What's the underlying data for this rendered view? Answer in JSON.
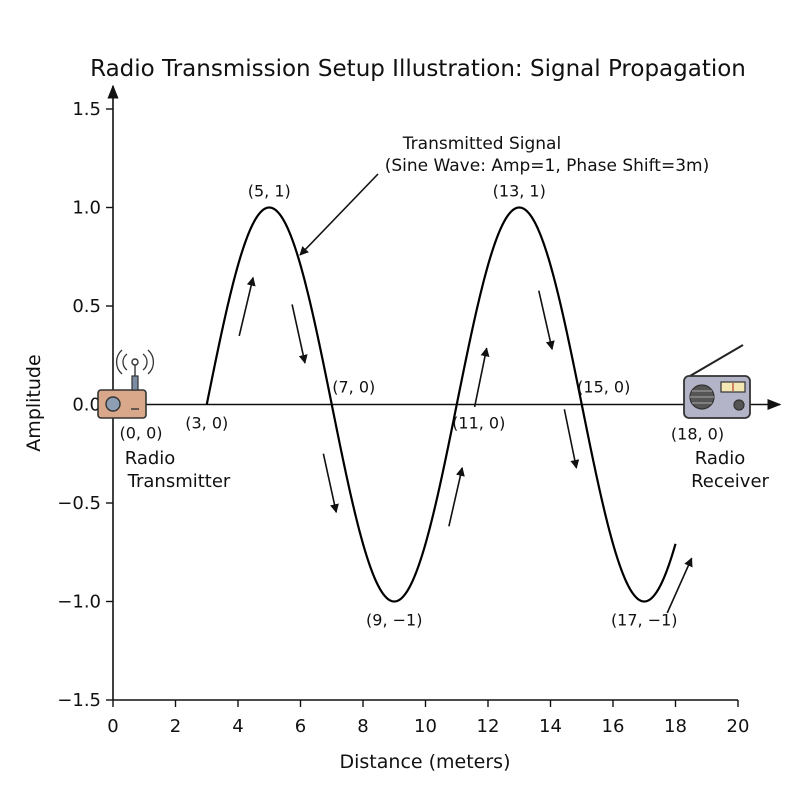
{
  "chart_data": {
    "type": "line",
    "title": "Radio Transmission Setup Illustration: Signal Propagation",
    "xlabel": "Distance (meters)",
    "ylabel": "Amplitude",
    "xlim": [
      0,
      20
    ],
    "ylim": [
      -1.5,
      1.5
    ],
    "x_ticks": [
      0,
      2,
      4,
      6,
      8,
      10,
      12,
      14,
      16,
      18,
      20
    ],
    "y_ticks": [
      -1.5,
      -1.0,
      -0.5,
      0.0,
      0.5,
      1.0,
      1.5
    ],
    "x_tick_labels": [
      "0",
      "2",
      "4",
      "6",
      "8",
      "10",
      "12",
      "14",
      "16",
      "18",
      "20"
    ],
    "y_tick_labels": [
      "−1.5",
      "−1.0",
      "−0.5",
      "0.0",
      "0.5",
      "1.0",
      "1.5"
    ],
    "grid": false,
    "series": [
      {
        "kind": "sine",
        "amplitude": 1,
        "x_start": 3,
        "x_end": 18,
        "x": [
          3,
          5,
          7,
          9,
          11,
          13,
          15,
          17,
          18
        ],
        "y": [
          0,
          1,
          0,
          -1,
          0,
          1,
          0,
          -1,
          0
        ],
        "color": "#000000"
      }
    ],
    "points": [
      {
        "x": 0,
        "y": 0,
        "label": "(0, 0)"
      },
      {
        "x": 3,
        "y": 0,
        "label": "(3, 0)"
      },
      {
        "x": 5,
        "y": 1,
        "label": "(5, 1)"
      },
      {
        "x": 7,
        "y": 0,
        "label": "(7, 0)"
      },
      {
        "x": 9,
        "y": -1,
        "label": "(9, −1)"
      },
      {
        "x": 11,
        "y": 0,
        "label": "(11, 0)"
      },
      {
        "x": 13,
        "y": 1,
        "label": "(13, 1)"
      },
      {
        "x": 15,
        "y": 0,
        "label": "(15, 0)"
      },
      {
        "x": 17,
        "y": -1,
        "label": "(17, −1)"
      },
      {
        "x": 18,
        "y": 0,
        "label": "(18, 0)"
      }
    ],
    "annotation": {
      "line1": "Transmitted Signal",
      "line2": "(Sine Wave: Amp=1, Phase Shift=3m)"
    },
    "devices": {
      "transmitter": {
        "line1": "Radio",
        "line2": "Transmitter",
        "icon": "radio-transmitter-icon"
      },
      "receiver": {
        "line1": "Radio",
        "line2": "Receiver",
        "icon": "radio-receiver-icon"
      }
    },
    "colors": {
      "line": "#000000",
      "transmitter_body": "#d9a88a",
      "receiver_body": "#b4b4c8"
    }
  }
}
